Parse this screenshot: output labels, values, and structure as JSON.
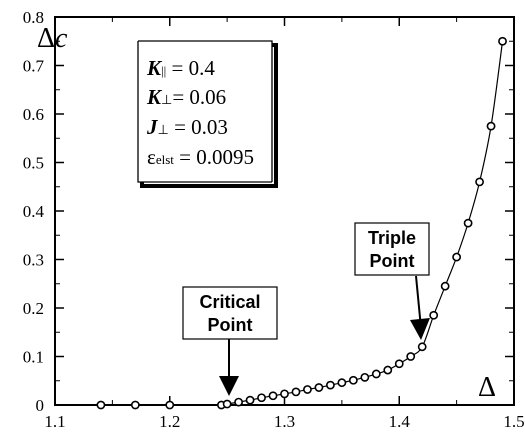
{
  "chart_data": {
    "type": "line",
    "title": "",
    "xlabel": "Δ",
    "ylabel": "Δc",
    "xlim": [
      1.1,
      1.5
    ],
    "ylim": [
      0,
      0.8
    ],
    "x_ticks": [
      "1.1",
      "1.2",
      "1.3",
      "1.4",
      "1.5"
    ],
    "y_ticks": [
      "0",
      "0.1",
      "0.2",
      "0.3",
      "0.4",
      "0.5",
      "0.6",
      "0.7",
      "0.8"
    ],
    "grid": false,
    "series": [
      {
        "marker": "circle-open",
        "line": "smooth",
        "color": "#000000",
        "x": [
          1.14,
          1.17,
          1.2,
          1.245,
          1.25,
          1.26,
          1.27,
          1.28,
          1.29,
          1.3,
          1.31,
          1.32,
          1.33,
          1.34,
          1.35,
          1.36,
          1.37,
          1.38,
          1.39,
          1.4,
          1.41,
          1.42,
          1.43,
          1.44,
          1.45,
          1.46,
          1.47,
          1.48,
          1.49
        ],
        "y": [
          0.0,
          0.0,
          0.0,
          0.0,
          0.002,
          0.006,
          0.01,
          0.015,
          0.019,
          0.023,
          0.027,
          0.032,
          0.036,
          0.041,
          0.046,
          0.051,
          0.057,
          0.064,
          0.072,
          0.085,
          0.1,
          0.12,
          0.185,
          0.245,
          0.305,
          0.375,
          0.46,
          0.575,
          0.75
        ]
      }
    ],
    "params": {
      "k_par": {
        "symbol": "K",
        "subscript": "||",
        "value": " = 0.4"
      },
      "k_perp": {
        "symbol": "K",
        "subscript": "⊥",
        "value": "= 0.06"
      },
      "j_perp": {
        "symbol": "J",
        "subscript": "⊥",
        "value": " = 0.03"
      },
      "eps": {
        "symbol": "ε",
        "subscript": "elst",
        "value": " = 0.0095"
      }
    },
    "annotations": {
      "critical": {
        "line1": "Critical",
        "line2": "Point",
        "x": 1.25,
        "y": 0.0
      },
      "triple": {
        "line1": "Triple",
        "line2": "Point",
        "x": 1.42,
        "y": 0.12
      }
    }
  }
}
